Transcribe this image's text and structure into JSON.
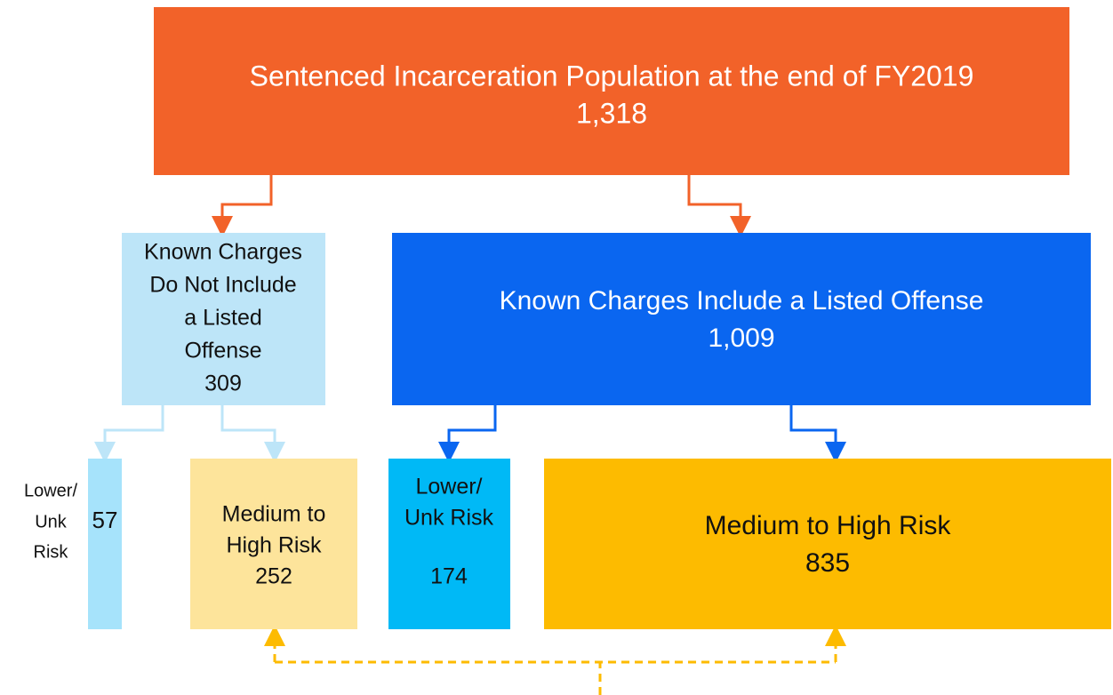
{
  "nodes": [
    {
      "lines": [
        "Sentenced Incarceration Population at the end of FY2019"
      ],
      "value": "1,318"
    },
    {
      "lines": [
        "Known Charges",
        "Do Not Include",
        "a Listed",
        "Offense"
      ],
      "value": "309"
    },
    {
      "lines": [
        "Known Charges Include a Listed Offense"
      ],
      "value": "1,009"
    },
    {
      "lines": [
        "Lower/",
        "Unk",
        "Risk"
      ],
      "value": "57"
    },
    {
      "lines": [
        "Medium to",
        "High Risk"
      ],
      "value": "252"
    },
    {
      "lines": [
        "Lower/",
        "Unk Risk"
      ],
      "value": "174"
    },
    {
      "lines": [
        "Medium to High Risk"
      ],
      "value": "835"
    }
  ]
}
